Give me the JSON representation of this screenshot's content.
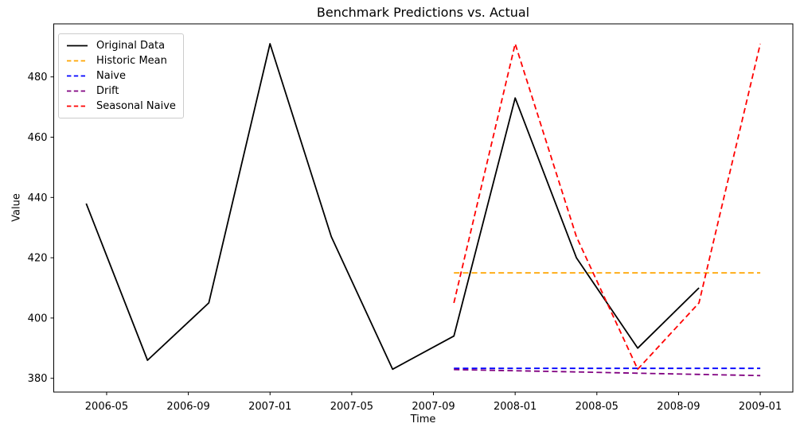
{
  "chart_data": {
    "type": "line",
    "title": "Benchmark Predictions vs. Actual",
    "xlabel": "Time",
    "ylabel": "Value",
    "grid": false,
    "legend_position": "upper left",
    "x_ticks": [
      "2006-05",
      "2006-09",
      "2007-01",
      "2007-05",
      "2007-09",
      "2008-01",
      "2008-05",
      "2008-09",
      "2009-01"
    ],
    "y_ticks": [
      380,
      400,
      420,
      440,
      460,
      480
    ],
    "ylim": [
      375.5,
      497.5
    ],
    "series": [
      {
        "name": "Original Data",
        "color": "#000000",
        "line_style": "solid",
        "x": [
          "2006-04",
          "2006-07",
          "2006-10",
          "2007-01",
          "2007-04",
          "2007-07",
          "2007-10",
          "2008-01",
          "2008-04",
          "2008-07",
          "2008-10"
        ],
        "values": [
          438,
          386,
          405,
          491,
          427,
          383,
          394,
          473,
          420,
          390,
          410
        ]
      },
      {
        "name": "Historic Mean",
        "color": "#FFA500",
        "line_style": "dashed",
        "x": [
          "2007-10",
          "2008-01",
          "2008-04",
          "2008-07",
          "2008-10",
          "2009-01"
        ],
        "values": [
          415,
          415,
          415,
          415,
          415,
          415
        ]
      },
      {
        "name": "Naive",
        "color": "#0000FF",
        "line_style": "dashed",
        "x": [
          "2007-10",
          "2008-01",
          "2008-04",
          "2008-07",
          "2008-10",
          "2009-01"
        ],
        "values": [
          383.3,
          383.3,
          383.3,
          383.3,
          383.3,
          383.3
        ]
      },
      {
        "name": "Drift",
        "color": "#800080",
        "line_style": "dashed",
        "x": [
          "2007-10",
          "2008-01",
          "2008-04",
          "2008-07",
          "2008-10",
          "2009-01"
        ],
        "values": [
          382.9,
          382.5,
          382.1,
          381.7,
          381.3,
          380.9
        ]
      },
      {
        "name": "Seasonal Naive",
        "color": "#FF0000",
        "line_style": "dashed",
        "x": [
          "2007-10",
          "2008-01",
          "2008-04",
          "2008-07",
          "2008-10",
          "2009-01"
        ],
        "values": [
          405,
          491,
          427,
          383,
          405,
          491
        ]
      }
    ]
  }
}
